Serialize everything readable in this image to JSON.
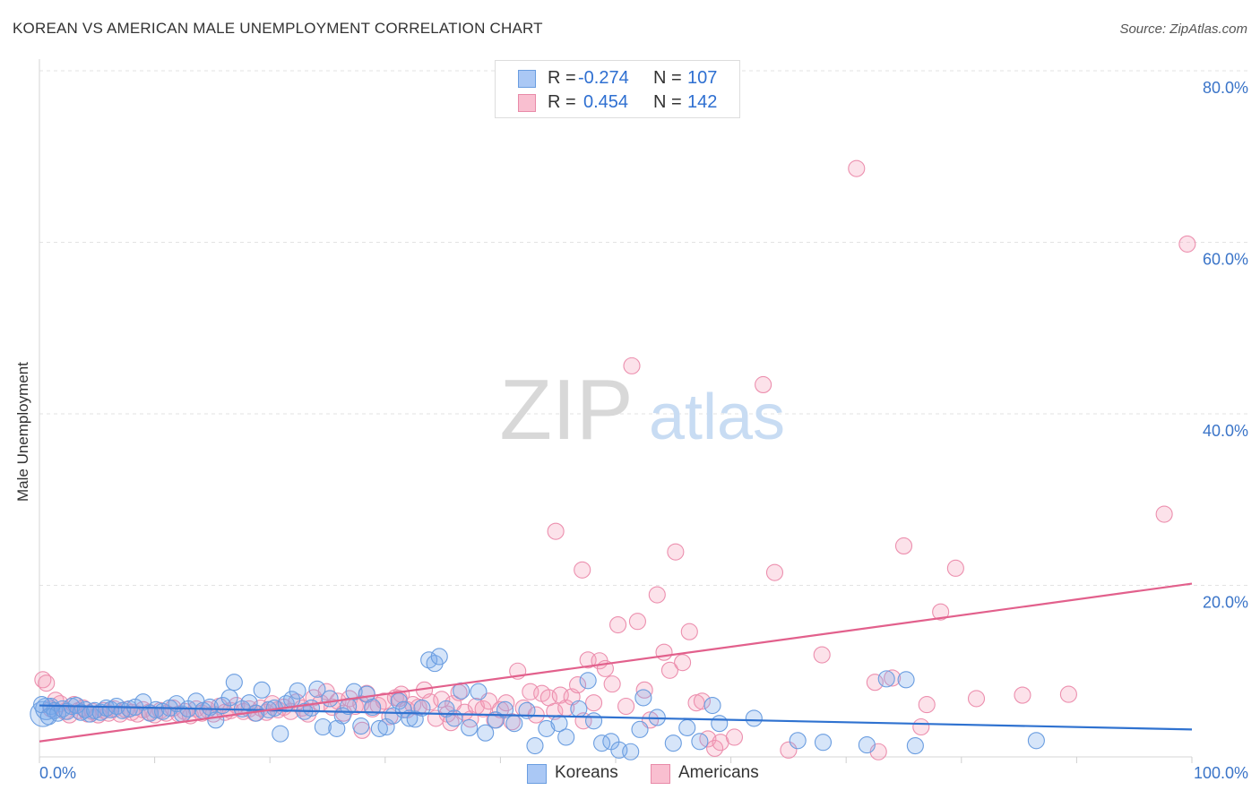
{
  "header": {
    "title": "KOREAN VS AMERICAN MALE UNEMPLOYMENT CORRELATION CHART",
    "source": "Source: ZipAtlas.com"
  },
  "watermark": {
    "zip": "ZIP",
    "atlas": "atlas"
  },
  "legend": {
    "r_label": "R =",
    "n_label": "N =",
    "rows": [
      {
        "name": "Koreans",
        "r": "-0.274",
        "n": "107",
        "fill": "#aac8f5",
        "stroke": "#6a9de0"
      },
      {
        "name": "Americans",
        "r": "0.454",
        "n": "142",
        "fill": "#f9bfd0",
        "stroke": "#e88aa8"
      }
    ]
  },
  "colors": {
    "korean_point_fill": "rgba(120,170,235,0.30)",
    "korean_point_stroke": "#6a9de0",
    "american_point_fill": "rgba(245,160,185,0.30)",
    "american_point_stroke": "#ec8fae",
    "korean_line": "#2f72d0",
    "american_line": "#e2608c",
    "tick_label": "#3a74c8",
    "grid": "#e3e3e3"
  },
  "chart_data": {
    "type": "scatter",
    "title": "KOREAN VS AMERICAN MALE UNEMPLOYMENT CORRELATION CHART",
    "xlabel": "",
    "ylabel": "Male Unemployment",
    "xlim": [
      0,
      100
    ],
    "ylim": [
      0,
      80
    ],
    "x_tick_labels": [
      "0.0%",
      "100.0%"
    ],
    "y_ticks": [
      20,
      40,
      60,
      80
    ],
    "y_tick_labels": [
      "20.0%",
      "40.0%",
      "60.0%",
      "80.0%"
    ],
    "grid": true,
    "legend_position": "bottom-center",
    "series": [
      {
        "name": "Koreans",
        "r": -0.274,
        "n": 107,
        "trend": {
          "x0": 0,
          "y0": 6.0,
          "x1": 100,
          "y1": 3.2
        },
        "points": [
          [
            0.3,
            5.0
          ],
          [
            0.6,
            5.6
          ],
          [
            1.0,
            5.9
          ],
          [
            1.3,
            5.4
          ],
          [
            1.6,
            5.1
          ],
          [
            2.0,
            5.6
          ],
          [
            2.4,
            5.3
          ],
          [
            2.8,
            5.9
          ],
          [
            3.2,
            6.0
          ],
          [
            3.6,
            5.2
          ],
          [
            4.0,
            5.5
          ],
          [
            4.4,
            5.0
          ],
          [
            4.8,
            5.4
          ],
          [
            5.3,
            5.2
          ],
          [
            5.8,
            5.7
          ],
          [
            6.2,
            5.5
          ],
          [
            6.7,
            5.9
          ],
          [
            7.2,
            5.4
          ],
          [
            7.8,
            5.6
          ],
          [
            8.3,
            5.8
          ],
          [
            9.0,
            6.4
          ],
          [
            9.6,
            5.1
          ],
          [
            10.1,
            5.5
          ],
          [
            10.7,
            5.3
          ],
          [
            11.3,
            5.7
          ],
          [
            11.9,
            6.2
          ],
          [
            12.4,
            5.0
          ],
          [
            12.9,
            5.6
          ],
          [
            13.6,
            6.5
          ],
          [
            14.2,
            5.4
          ],
          [
            14.8,
            5.8
          ],
          [
            15.3,
            4.3
          ],
          [
            15.9,
            6.0
          ],
          [
            16.5,
            6.9
          ],
          [
            16.9,
            8.7
          ],
          [
            17.6,
            5.6
          ],
          [
            18.2,
            6.3
          ],
          [
            18.8,
            5.1
          ],
          [
            19.3,
            7.8
          ],
          [
            19.9,
            5.5
          ],
          [
            20.4,
            5.7
          ],
          [
            20.9,
            2.7
          ],
          [
            21.4,
            6.2
          ],
          [
            21.9,
            6.7
          ],
          [
            22.4,
            7.7
          ],
          [
            23.0,
            5.3
          ],
          [
            23.6,
            5.7
          ],
          [
            24.1,
            7.9
          ],
          [
            24.6,
            3.5
          ],
          [
            25.2,
            6.8
          ],
          [
            25.8,
            3.3
          ],
          [
            26.3,
            4.8
          ],
          [
            26.8,
            5.9
          ],
          [
            27.3,
            7.6
          ],
          [
            27.9,
            3.6
          ],
          [
            28.4,
            7.3
          ],
          [
            28.9,
            5.8
          ],
          [
            29.5,
            3.3
          ],
          [
            30.1,
            3.5
          ],
          [
            30.7,
            4.8
          ],
          [
            31.2,
            6.5
          ],
          [
            31.6,
            5.5
          ],
          [
            32.1,
            4.5
          ],
          [
            32.6,
            4.4
          ],
          [
            33.2,
            5.7
          ],
          [
            33.8,
            11.3
          ],
          [
            34.3,
            10.9
          ],
          [
            34.7,
            11.7
          ],
          [
            35.3,
            5.6
          ],
          [
            36.0,
            4.5
          ],
          [
            36.6,
            7.7
          ],
          [
            37.3,
            3.4
          ],
          [
            38.1,
            7.6
          ],
          [
            38.7,
            2.8
          ],
          [
            39.6,
            4.3
          ],
          [
            40.4,
            5.5
          ],
          [
            41.2,
            3.9
          ],
          [
            42.3,
            5.4
          ],
          [
            43.0,
            1.3
          ],
          [
            44.0,
            3.3
          ],
          [
            45.1,
            3.9
          ],
          [
            45.7,
            2.3
          ],
          [
            46.8,
            5.6
          ],
          [
            47.6,
            8.9
          ],
          [
            48.1,
            4.2
          ],
          [
            48.8,
            1.6
          ],
          [
            49.6,
            1.8
          ],
          [
            50.3,
            0.8
          ],
          [
            51.3,
            0.6
          ],
          [
            52.1,
            3.2
          ],
          [
            52.4,
            6.9
          ],
          [
            53.6,
            4.6
          ],
          [
            55.0,
            1.6
          ],
          [
            56.2,
            3.4
          ],
          [
            57.3,
            1.8
          ],
          [
            58.4,
            6.0
          ],
          [
            59.0,
            3.9
          ],
          [
            62.0,
            4.5
          ],
          [
            65.8,
            1.9
          ],
          [
            68.0,
            1.7
          ],
          [
            71.8,
            1.4
          ],
          [
            73.5,
            9.1
          ],
          [
            75.2,
            9.0
          ],
          [
            76.0,
            1.3
          ],
          [
            86.5,
            1.9
          ],
          [
            0.2,
            6.1
          ],
          [
            0.8,
            4.7
          ]
        ]
      },
      {
        "name": "Americans",
        "r": 0.454,
        "n": 142,
        "trend": {
          "x0": 0,
          "y0": 1.8,
          "x1": 100,
          "y1": 20.2
        },
        "points": [
          [
            0.3,
            9.0
          ],
          [
            0.6,
            8.6
          ],
          [
            1.0,
            5.6
          ],
          [
            1.4,
            6.6
          ],
          [
            1.8,
            6.2
          ],
          [
            2.2,
            5.3
          ],
          [
            2.6,
            4.9
          ],
          [
            3.0,
            6.1
          ],
          [
            3.4,
            5.4
          ],
          [
            3.8,
            5.7
          ],
          [
            4.2,
            5.0
          ],
          [
            4.6,
            5.3
          ],
          [
            5.1,
            4.9
          ],
          [
            5.6,
            5.4
          ],
          [
            6.0,
            5.1
          ],
          [
            6.5,
            5.6
          ],
          [
            7.0,
            5.0
          ],
          [
            7.5,
            5.5
          ],
          [
            8.0,
            5.2
          ],
          [
            8.5,
            5.0
          ],
          [
            9.0,
            5.5
          ],
          [
            9.5,
            5.2
          ],
          [
            10.0,
            4.9
          ],
          [
            10.5,
            5.4
          ],
          [
            11.0,
            5.1
          ],
          [
            11.6,
            5.7
          ],
          [
            12.1,
            5.0
          ],
          [
            12.6,
            5.3
          ],
          [
            13.1,
            4.8
          ],
          [
            13.6,
            5.6
          ],
          [
            14.1,
            5.1
          ],
          [
            14.6,
            5.5
          ],
          [
            15.1,
            5.0
          ],
          [
            15.6,
            5.9
          ],
          [
            16.1,
            5.2
          ],
          [
            16.6,
            5.4
          ],
          [
            17.1,
            6.0
          ],
          [
            17.7,
            5.3
          ],
          [
            18.2,
            5.6
          ],
          [
            18.7,
            5.1
          ],
          [
            19.2,
            5.7
          ],
          [
            19.7,
            5.2
          ],
          [
            20.2,
            6.2
          ],
          [
            20.7,
            5.5
          ],
          [
            21.2,
            5.8
          ],
          [
            21.8,
            5.3
          ],
          [
            22.3,
            6.4
          ],
          [
            22.8,
            5.7
          ],
          [
            23.3,
            5.0
          ],
          [
            23.8,
            6.9
          ],
          [
            24.4,
            6.3
          ],
          [
            24.9,
            7.6
          ],
          [
            25.4,
            5.8
          ],
          [
            25.9,
            6.5
          ],
          [
            26.4,
            5.1
          ],
          [
            26.9,
            6.8
          ],
          [
            27.4,
            5.9
          ],
          [
            27.9,
            6.2
          ],
          [
            28.4,
            7.4
          ],
          [
            28.9,
            5.6
          ],
          [
            29.4,
            6.0
          ],
          [
            29.9,
            6.5
          ],
          [
            30.4,
            4.7
          ],
          [
            30.9,
            6.9
          ],
          [
            31.4,
            7.3
          ],
          [
            31.9,
            5.5
          ],
          [
            32.4,
            6.1
          ],
          [
            32.9,
            5.8
          ],
          [
            33.4,
            7.8
          ],
          [
            33.9,
            6.4
          ],
          [
            34.4,
            4.5
          ],
          [
            34.9,
            6.7
          ],
          [
            35.4,
            5.0
          ],
          [
            35.9,
            6.2
          ],
          [
            36.4,
            7.5
          ],
          [
            36.9,
            5.2
          ],
          [
            37.4,
            4.4
          ],
          [
            37.9,
            5.9
          ],
          [
            38.5,
            5.6
          ],
          [
            39.0,
            6.5
          ],
          [
            39.5,
            4.3
          ],
          [
            40.0,
            5.5
          ],
          [
            40.5,
            6.3
          ],
          [
            41.0,
            4.1
          ],
          [
            41.5,
            10.0
          ],
          [
            42.0,
            5.7
          ],
          [
            42.6,
            7.6
          ],
          [
            43.1,
            4.9
          ],
          [
            43.6,
            7.4
          ],
          [
            44.2,
            6.9
          ],
          [
            44.7,
            5.3
          ],
          [
            45.2,
            7.2
          ],
          [
            45.7,
            5.7
          ],
          [
            46.2,
            7.0
          ],
          [
            46.7,
            8.4
          ],
          [
            47.2,
            4.2
          ],
          [
            47.6,
            11.3
          ],
          [
            48.1,
            6.3
          ],
          [
            48.6,
            11.2
          ],
          [
            49.1,
            10.3
          ],
          [
            49.7,
            8.5
          ],
          [
            50.2,
            15.4
          ],
          [
            50.9,
            5.9
          ],
          [
            51.4,
            45.6
          ],
          [
            51.9,
            15.8
          ],
          [
            52.5,
            7.8
          ],
          [
            53.0,
            4.3
          ],
          [
            53.6,
            18.9
          ],
          [
            54.2,
            12.2
          ],
          [
            54.7,
            10.1
          ],
          [
            55.2,
            23.9
          ],
          [
            55.8,
            11.0
          ],
          [
            56.4,
            14.6
          ],
          [
            57.0,
            6.3
          ],
          [
            57.5,
            6.5
          ],
          [
            58.0,
            2.1
          ],
          [
            58.6,
            1.0
          ],
          [
            59.1,
            1.7
          ],
          [
            60.3,
            2.3
          ],
          [
            62.8,
            43.4
          ],
          [
            63.8,
            21.5
          ],
          [
            65.0,
            0.8
          ],
          [
            67.9,
            11.9
          ],
          [
            70.9,
            68.6
          ],
          [
            72.5,
            8.7
          ],
          [
            74.0,
            9.2
          ],
          [
            75.0,
            24.6
          ],
          [
            76.5,
            3.5
          ],
          [
            77.0,
            6.1
          ],
          [
            78.2,
            16.9
          ],
          [
            79.5,
            22.0
          ],
          [
            81.3,
            6.8
          ],
          [
            85.3,
            7.2
          ],
          [
            89.3,
            7.3
          ],
          [
            97.6,
            28.3
          ],
          [
            99.6,
            59.8
          ],
          [
            44.8,
            26.3
          ],
          [
            47.1,
            21.8
          ],
          [
            35.7,
            4.0
          ],
          [
            31.2,
            6.8
          ],
          [
            28.0,
            3.1
          ],
          [
            72.8,
            0.6
          ]
        ]
      }
    ]
  }
}
